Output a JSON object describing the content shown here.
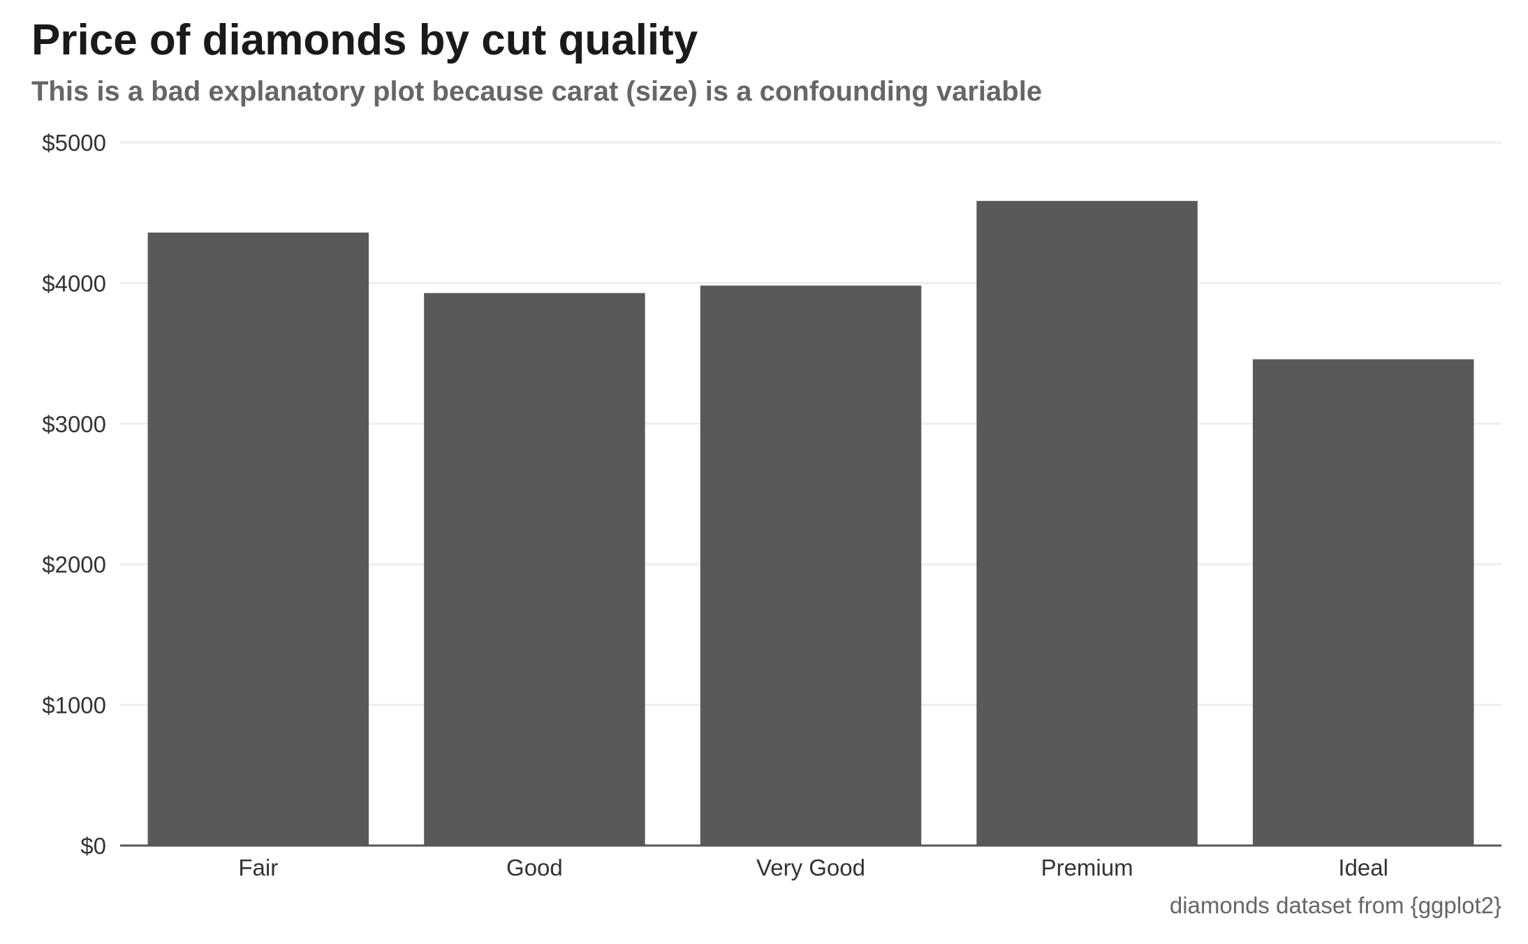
{
  "chart_data": {
    "type": "bar",
    "title": "Price of diamonds by cut quality",
    "subtitle": "This is a bad explanatory plot because carat (size) is a confounding variable",
    "caption": "diamonds dataset from {ggplot2}",
    "xlabel": "",
    "ylabel": "",
    "categories": [
      "Fair",
      "Good",
      "Very Good",
      "Premium",
      "Ideal"
    ],
    "values": [
      4359,
      3929,
      3982,
      4584,
      3458
    ],
    "ylim": [
      0,
      5000
    ],
    "yticks": [
      0,
      1000,
      2000,
      3000,
      4000,
      5000
    ],
    "ytick_labels": [
      "$0",
      "$1000",
      "$2000",
      "$3000",
      "$4000",
      "$5000"
    ],
    "grid": "horizontal",
    "legend": "none",
    "colors": {
      "bar": "#595959",
      "grid": "#eeeeee",
      "axis": "#555555"
    }
  }
}
